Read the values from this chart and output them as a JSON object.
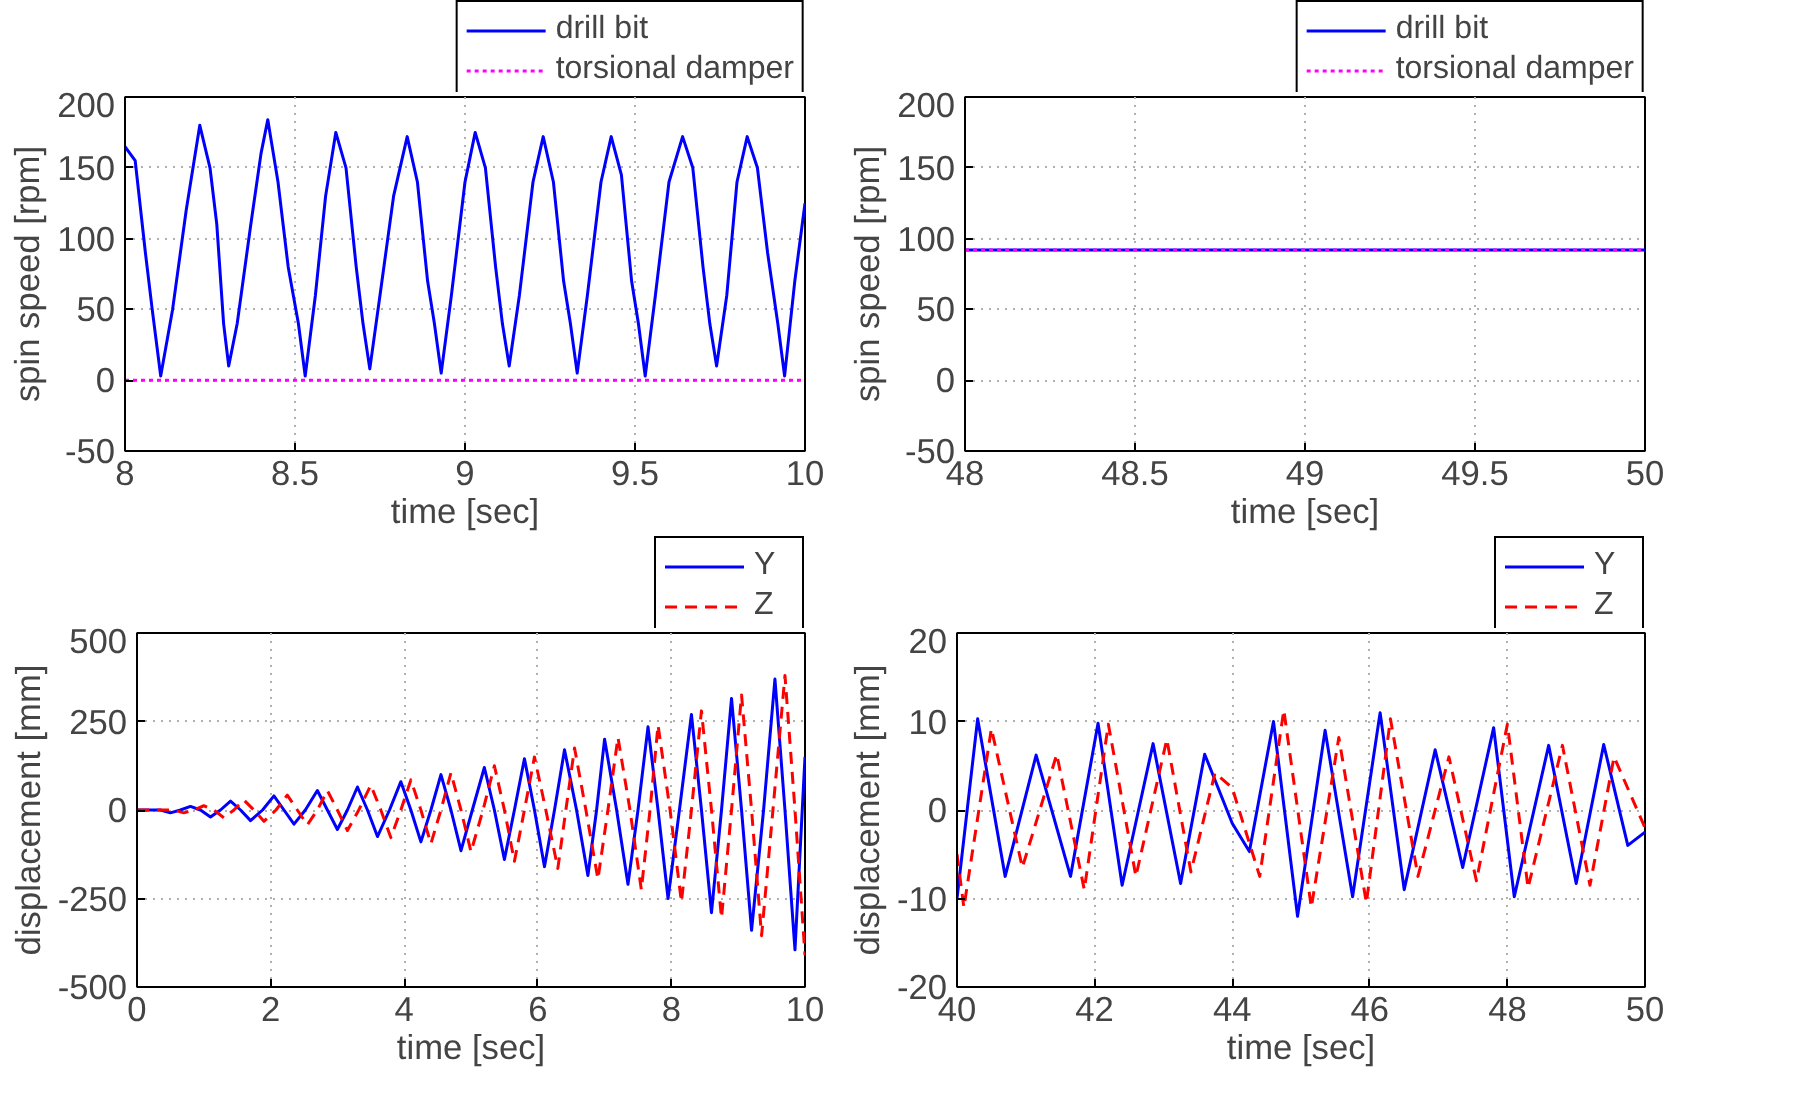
{
  "chart_data": [
    {
      "type": "line",
      "xlabel": "time [sec]",
      "ylabel": "spin speed [rpm]",
      "xlim": [
        8,
        10
      ],
      "ylim": [
        -50,
        200
      ],
      "xticks": [
        8,
        8.5,
        9,
        9.5,
        10
      ],
      "yticks": [
        -50,
        0,
        50,
        100,
        150,
        200
      ],
      "grid": true,
      "legend": "top right",
      "series": [
        {
          "name": "drill bit",
          "color": "#0000ff",
          "line_style": "solid",
          "x": [
            8.0,
            8.03,
            8.06,
            8.08,
            8.105,
            8.14,
            8.18,
            8.22,
            8.25,
            8.27,
            8.29,
            8.305,
            8.33,
            8.37,
            8.4,
            8.42,
            8.45,
            8.48,
            8.51,
            8.53,
            8.56,
            8.59,
            8.62,
            8.65,
            8.68,
            8.7,
            8.72,
            8.75,
            8.79,
            8.83,
            8.86,
            8.89,
            8.91,
            8.93,
            8.96,
            9.0,
            9.03,
            9.06,
            9.09,
            9.11,
            9.13,
            9.16,
            9.2,
            9.23,
            9.26,
            9.29,
            9.31,
            9.33,
            9.36,
            9.4,
            9.43,
            9.46,
            9.49,
            9.51,
            9.53,
            9.56,
            9.6,
            9.64,
            9.67,
            9.7,
            9.72,
            9.74,
            9.77,
            9.8,
            9.83,
            9.86,
            9.89,
            9.92,
            9.94,
            9.97,
            10.0
          ],
          "values": [
            165,
            155,
            90,
            50,
            3,
            50,
            120,
            180,
            150,
            110,
            40,
            10,
            40,
            110,
            160,
            184,
            140,
            80,
            40,
            3,
            60,
            130,
            175,
            150,
            80,
            40,
            8,
            60,
            130,
            172,
            140,
            70,
            40,
            5,
            60,
            140,
            175,
            150,
            80,
            40,
            10,
            60,
            140,
            172,
            140,
            70,
            40,
            5,
            60,
            140,
            172,
            145,
            70,
            40,
            3,
            60,
            140,
            172,
            150,
            80,
            40,
            10,
            60,
            140,
            172,
            150,
            90,
            40,
            3,
            70,
            125
          ]
        },
        {
          "name": "torsional damper",
          "color": "#ff00ff",
          "line_style": "dotted",
          "x": [
            8,
            10
          ],
          "values": [
            0,
            0
          ]
        }
      ]
    },
    {
      "type": "line",
      "xlabel": "time [sec]",
      "ylabel": "spin speed [rpm]",
      "xlim": [
        48,
        50
      ],
      "ylim": [
        -50,
        200
      ],
      "xticks": [
        48,
        48.5,
        49,
        49.5,
        50
      ],
      "yticks": [
        -50,
        0,
        50,
        100,
        150,
        200
      ],
      "grid": true,
      "legend": "top right",
      "series": [
        {
          "name": "drill bit",
          "color": "#0000ff",
          "line_style": "solid",
          "x": [
            48,
            50
          ],
          "values": [
            92,
            92
          ]
        },
        {
          "name": "torsional damper",
          "color": "#ff00ff",
          "line_style": "dotted",
          "x": [
            48,
            50
          ],
          "values": [
            92,
            92
          ]
        }
      ]
    },
    {
      "type": "line",
      "xlabel": "time [sec]",
      "ylabel": "displacement [mm]",
      "xlim": [
        0,
        10
      ],
      "ylim": [
        -500,
        500
      ],
      "xticks": [
        0,
        2,
        4,
        6,
        8,
        10
      ],
      "yticks": [
        -500,
        -250,
        0,
        250,
        500
      ],
      "grid": true,
      "legend": "top right",
      "series": [
        {
          "name": "Y",
          "color": "#0000ff",
          "line_style": "solid",
          "x": [
            0,
            0.35,
            0.5,
            0.65,
            0.8,
            0.95,
            1.1,
            1.25,
            1.4,
            1.55,
            1.7,
            1.88,
            2.05,
            2.2,
            2.35,
            2.52,
            2.7,
            2.85,
            3.0,
            3.15,
            3.3,
            3.45,
            3.6,
            3.78,
            3.95,
            4.1,
            4.25,
            4.4,
            4.55,
            4.7,
            4.85,
            5.02,
            5.2,
            5.35,
            5.5,
            5.65,
            5.8,
            5.95,
            6.1,
            6.25,
            6.4,
            6.58,
            6.75,
            6.88,
            7.0,
            7.18,
            7.35,
            7.5,
            7.65,
            7.8,
            7.95,
            8.12,
            8.3,
            8.45,
            8.6,
            8.75,
            8.9,
            9.05,
            9.2,
            9.38,
            9.55,
            9.7,
            9.85,
            10.0
          ],
          "values": [
            0,
            0,
            -8,
            0,
            10,
            0,
            -20,
            0,
            25,
            0,
            -30,
            0,
            40,
            0,
            -40,
            0,
            55,
            0,
            -55,
            0,
            65,
            0,
            -75,
            0,
            80,
            0,
            -90,
            0,
            100,
            0,
            -115,
            0,
            120,
            0,
            -140,
            0,
            145,
            0,
            -160,
            0,
            170,
            0,
            -185,
            0,
            200,
            0,
            -210,
            0,
            235,
            0,
            -250,
            0,
            270,
            0,
            -290,
            0,
            315,
            0,
            -340,
            0,
            370,
            0,
            -395,
            150
          ]
        },
        {
          "name": "Z",
          "color": "#ff0000",
          "line_style": "dashed",
          "x": [
            0,
            0.55,
            0.7,
            0.85,
            1.0,
            1.15,
            1.3,
            1.45,
            1.6,
            1.75,
            1.9,
            2.08,
            2.25,
            2.4,
            2.55,
            2.7,
            2.85,
            3.0,
            3.15,
            3.32,
            3.5,
            3.65,
            3.8,
            3.95,
            4.1,
            4.25,
            4.4,
            4.55,
            4.7,
            4.85,
            5.0,
            5.18,
            5.35,
            5.5,
            5.65,
            5.8,
            5.95,
            6.12,
            6.3,
            6.42,
            6.55,
            6.72,
            6.9,
            7.05,
            7.2,
            7.38,
            7.55,
            7.68,
            7.8,
            7.98,
            8.15,
            8.3,
            8.45,
            8.6,
            8.75,
            8.9,
            9.05,
            9.2,
            9.35,
            9.52,
            9.7,
            9.85,
            10.0
          ],
          "values": [
            0,
            0,
            -8,
            0,
            12,
            0,
            -22,
            0,
            28,
            0,
            -32,
            0,
            42,
            0,
            -42,
            0,
            55,
            0,
            -58,
            0,
            70,
            0,
            -78,
            0,
            85,
            0,
            -95,
            0,
            105,
            0,
            -118,
            0,
            125,
            0,
            -145,
            0,
            150,
            0,
            -165,
            0,
            175,
            0,
            -195,
            0,
            205,
            0,
            -225,
            0,
            240,
            0,
            -260,
            0,
            280,
            0,
            -305,
            0,
            325,
            0,
            -355,
            0,
            380,
            0,
            -410
          ]
        }
      ]
    },
    {
      "type": "line",
      "xlabel": "time [sec]",
      "ylabel": "displacement [mm]",
      "xlim": [
        40,
        50
      ],
      "ylim": [
        -20,
        20
      ],
      "xticks": [
        40,
        42,
        44,
        46,
        48,
        50
      ],
      "yticks": [
        -20,
        -10,
        0,
        10,
        20
      ],
      "grid": true,
      "legend": "top right",
      "series": [
        {
          "name": "Y",
          "color": "#0000ff",
          "line_style": "solid",
          "x": [
            40.0,
            40.3,
            40.7,
            41.15,
            41.65,
            42.05,
            42.4,
            42.85,
            43.25,
            43.6,
            44.0,
            44.25,
            44.6,
            44.95,
            45.35,
            45.75,
            46.15,
            46.5,
            46.95,
            47.35,
            47.8,
            48.1,
            48.6,
            49.0,
            49.4,
            49.75,
            50.0
          ],
          "values": [
            -10,
            10.3,
            -7.5,
            6.2,
            -7.5,
            9.8,
            -8.5,
            7.5,
            -8.3,
            6.3,
            -1.5,
            -4.7,
            10,
            -12,
            9,
            -9.8,
            11,
            -9,
            6.8,
            -6.5,
            9.3,
            -9.8,
            7.3,
            -8.3,
            7.4,
            -4,
            -2.5
          ]
        },
        {
          "name": "Z",
          "color": "#ff0000",
          "line_style": "dashed",
          "x": [
            40.0,
            40.1,
            40.5,
            40.95,
            41.45,
            41.85,
            42.2,
            42.6,
            43.05,
            43.4,
            43.75,
            44.0,
            44.4,
            44.75,
            45.15,
            45.55,
            45.95,
            46.3,
            46.7,
            47.15,
            47.55,
            48.0,
            48.3,
            48.8,
            49.2,
            49.55,
            50.0
          ],
          "values": [
            -5,
            -11,
            9.2,
            -6.5,
            6.3,
            -9,
            9.7,
            -7.5,
            8,
            -7,
            4.2,
            2.5,
            -7.5,
            11.3,
            -11,
            8.2,
            -10.5,
            10.3,
            -7.5,
            6,
            -8,
            9.7,
            -8.8,
            7.3,
            -8.5,
            6,
            -2
          ]
        }
      ]
    }
  ]
}
